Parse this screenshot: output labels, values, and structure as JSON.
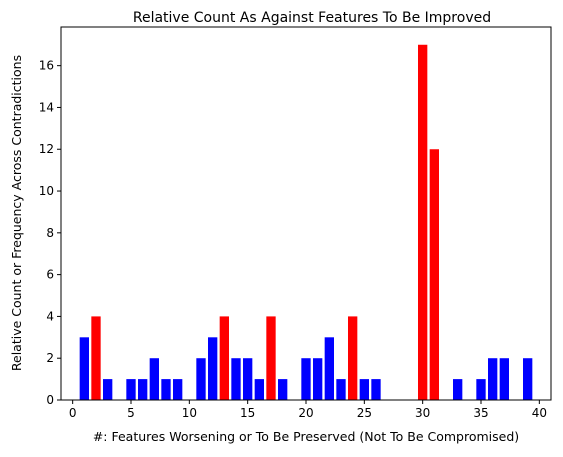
{
  "chart_data": {
    "type": "bar",
    "title": "Relative Count As Against Features To Be Improved",
    "xlabel": "#: Features Worsening or To Be Preserved (Not To Be Compromised)",
    "ylabel": "Relative Count or Frequency Across Contradictions",
    "xlim": [
      -1.0,
      41.0
    ],
    "ylim": [
      0,
      17.85
    ],
    "xticks": [
      0,
      5,
      10,
      15,
      20,
      25,
      30,
      35,
      40
    ],
    "yticks": [
      0,
      2,
      4,
      6,
      8,
      10,
      12,
      14,
      16
    ],
    "grid": false,
    "legend": "none",
    "colors": {
      "low": "#0000ff",
      "high": "#ff0000"
    },
    "bars": [
      {
        "x": 1,
        "value": 3,
        "color": "#0000ff"
      },
      {
        "x": 2,
        "value": 4,
        "color": "#ff0000"
      },
      {
        "x": 3,
        "value": 1,
        "color": "#0000ff"
      },
      {
        "x": 5,
        "value": 1,
        "color": "#0000ff"
      },
      {
        "x": 6,
        "value": 1,
        "color": "#0000ff"
      },
      {
        "x": 7,
        "value": 2,
        "color": "#0000ff"
      },
      {
        "x": 8,
        "value": 1,
        "color": "#0000ff"
      },
      {
        "x": 9,
        "value": 1,
        "color": "#0000ff"
      },
      {
        "x": 11,
        "value": 2,
        "color": "#0000ff"
      },
      {
        "x": 12,
        "value": 3,
        "color": "#0000ff"
      },
      {
        "x": 13,
        "value": 4,
        "color": "#ff0000"
      },
      {
        "x": 14,
        "value": 2,
        "color": "#0000ff"
      },
      {
        "x": 15,
        "value": 2,
        "color": "#0000ff"
      },
      {
        "x": 16,
        "value": 1,
        "color": "#0000ff"
      },
      {
        "x": 17,
        "value": 4,
        "color": "#ff0000"
      },
      {
        "x": 18,
        "value": 1,
        "color": "#0000ff"
      },
      {
        "x": 20,
        "value": 2,
        "color": "#0000ff"
      },
      {
        "x": 21,
        "value": 2,
        "color": "#0000ff"
      },
      {
        "x": 22,
        "value": 3,
        "color": "#0000ff"
      },
      {
        "x": 23,
        "value": 1,
        "color": "#0000ff"
      },
      {
        "x": 24,
        "value": 4,
        "color": "#ff0000"
      },
      {
        "x": 25,
        "value": 1,
        "color": "#0000ff"
      },
      {
        "x": 26,
        "value": 1,
        "color": "#0000ff"
      },
      {
        "x": 30,
        "value": 17,
        "color": "#ff0000"
      },
      {
        "x": 31,
        "value": 12,
        "color": "#ff0000"
      },
      {
        "x": 33,
        "value": 1,
        "color": "#0000ff"
      },
      {
        "x": 35,
        "value": 1,
        "color": "#0000ff"
      },
      {
        "x": 36,
        "value": 2,
        "color": "#0000ff"
      },
      {
        "x": 37,
        "value": 2,
        "color": "#0000ff"
      },
      {
        "x": 39,
        "value": 2,
        "color": "#0000ff"
      }
    ]
  }
}
